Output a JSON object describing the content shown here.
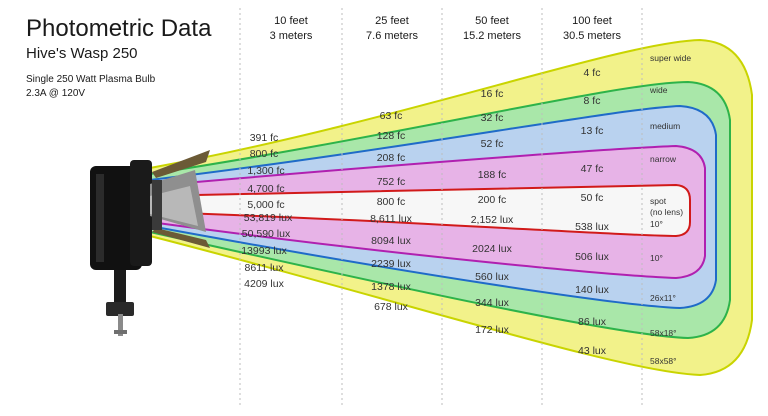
{
  "header": {
    "title": "Photometric Data",
    "subtitle": "Hive's Wasp 250",
    "spec_line1": "Single 250 Watt Plasma Bulb",
    "spec_line2": "2.3A @ 120V"
  },
  "distances": [
    {
      "feet": "10 feet",
      "meters": "3 meters"
    },
    {
      "feet": "25 feet",
      "meters": "7.6 meters"
    },
    {
      "feet": "50 feet",
      "meters": "15.2 meters"
    },
    {
      "feet": "100 feet",
      "meters": "30.5 meters"
    }
  ],
  "beams": [
    {
      "label": "super wide",
      "color": "#f2f28a",
      "edge": "#c9d400"
    },
    {
      "label": "wide",
      "color": "#a9e7a9",
      "edge": "#2db34a"
    },
    {
      "label": "medium",
      "color": "#b9d2ef",
      "edge": "#1f6bc8"
    },
    {
      "label": "narrow",
      "color": "#e7b3e7",
      "edge": "#b020b0"
    },
    {
      "label": "spot (no lens)",
      "color": "#f7f7f7",
      "edge": "#d11a1a"
    }
  ],
  "fc_rows": [
    [
      "391 fc",
      "63 fc",
      "16 fc",
      "4 fc"
    ],
    [
      "800 fc",
      "128 fc",
      "32 fc",
      "8 fc"
    ],
    [
      "1,300 fc",
      "208 fc",
      "52 fc",
      "13 fc"
    ],
    [
      "4,700 fc",
      "752 fc",
      "188 fc",
      "47 fc"
    ],
    [
      "5,000 fc",
      "800 fc",
      "200 fc",
      "50 fc"
    ]
  ],
  "lux_rows": [
    {
      "angle": "10°",
      "values": [
        "53,819 lux",
        "8,611 lux",
        "2,152 lux",
        "538 lux"
      ]
    },
    {
      "angle": "10°",
      "values": [
        "50,590 lux",
        "8094 lux",
        "2024 lux",
        "506 lux"
      ]
    },
    {
      "angle": "26x11°",
      "values": [
        "13993 lux",
        "2239 lux",
        "560 lux",
        "140 lux"
      ]
    },
    {
      "angle": "58x18°",
      "values": [
        "8611 lux",
        "1378 lux",
        "344 lux",
        "86 lux"
      ]
    },
    {
      "angle": "58x58°",
      "values": [
        "4209 lux",
        "678 lux",
        "172 lux",
        "43 lux"
      ]
    }
  ],
  "fixture": {
    "icon": "wasp-250-light-fixture-icon"
  }
}
